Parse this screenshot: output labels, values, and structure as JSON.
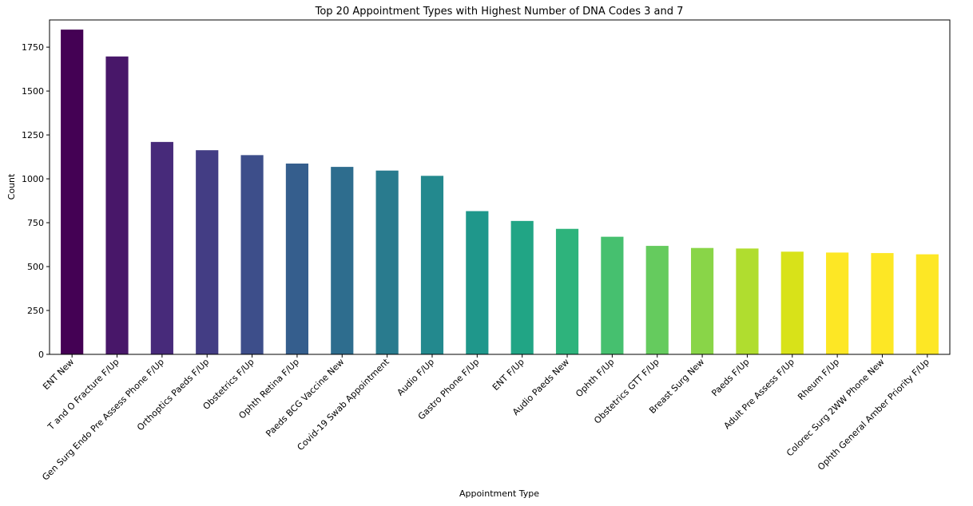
{
  "chart_data": {
    "type": "bar",
    "title": "Top 20 Appointment Types with Highest Number of DNA Codes 3 and 7",
    "xlabel": "Appointment Type",
    "ylabel": "Count",
    "ylim": [
      0,
      1905
    ],
    "yticks": [
      0,
      250,
      500,
      750,
      1000,
      1250,
      1500,
      1750
    ],
    "grid": false,
    "colormap": "viridis",
    "categories": [
      "ENT New",
      "T and O Fracture F/Up",
      "Gen Surg Endo Pre Assess Phone F/Up",
      "Orthoptics Paeds F/Up",
      "Obstetrics F/Up",
      "Ophth Retina F/Up",
      "Paeds BCG Vaccine New",
      "Covid-19 Swab Appointment",
      "Audio F/Up",
      "Gastro Phone F/Up",
      "ENT F/Up",
      "Audio Paeds New",
      "Ophth F/Up",
      "Obstetrics GTT F/Up",
      "Breast Surg New",
      "Paeds F/Up",
      "Adult Pre Assess F/Up",
      "Rheum F/Up",
      "Colorec Surg 2WW Phone New",
      "Ophth General Amber Priority F/Up"
    ],
    "values": [
      1850,
      1697,
      1210,
      1163,
      1135,
      1087,
      1068,
      1047,
      1017,
      816,
      760,
      715,
      670,
      618,
      606,
      603,
      585,
      580,
      577,
      570
    ],
    "colors": [
      "#440154",
      "#481769",
      "#472a7a",
      "#433d84",
      "#3d4e8a",
      "#355e8d",
      "#2e6d8e",
      "#297b8e",
      "#23898e",
      "#1f978b",
      "#21a585",
      "#2eb37c",
      "#46c06f",
      "#65cb5e",
      "#89d548",
      "#b0dd2f",
      "#d8e219",
      "#fde725",
      "#fde725",
      "#fde725"
    ]
  }
}
